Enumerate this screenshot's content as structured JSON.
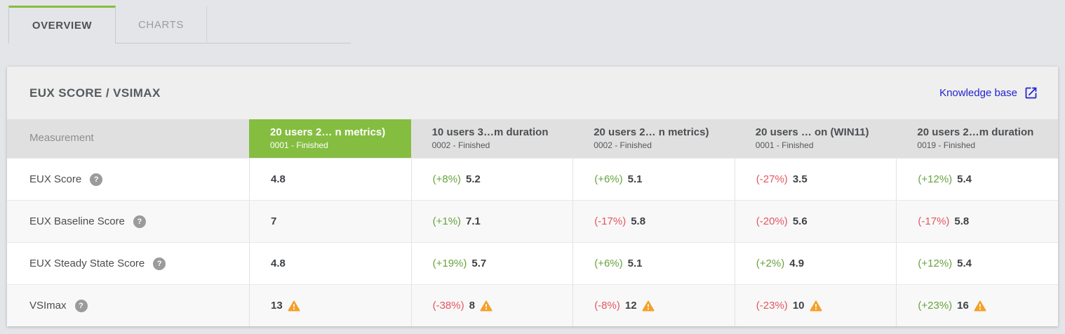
{
  "tabs": [
    {
      "label": "OVERVIEW",
      "active": true
    },
    {
      "label": "CHARTS",
      "active": false
    }
  ],
  "panel": {
    "title": "EUX SCORE / VSIMAX",
    "knowledge_base_label": "Knowledge base"
  },
  "icons": {
    "external_link": "open-in-new",
    "help_glyph": "?",
    "warning": "triangle-exclamation"
  },
  "table": {
    "measurement_header": "Measurement",
    "columns": [
      {
        "title": "20 users 2… n metrics)",
        "subtitle": "0001 - Finished",
        "highlight": true
      },
      {
        "title": "10 users 3…m duration",
        "subtitle": "0002 - Finished",
        "highlight": false
      },
      {
        "title": "20 users 2… n metrics)",
        "subtitle": "0002 - Finished",
        "highlight": false
      },
      {
        "title": "20 users … on (WIN11)",
        "subtitle": "0001 - Finished",
        "highlight": false
      },
      {
        "title": "20 users 2…m duration",
        "subtitle": "0019 - Finished",
        "highlight": false
      }
    ],
    "rows": [
      {
        "label": "EUX Score",
        "cells": [
          {
            "value": "4.8"
          },
          {
            "pct": "(+8%)",
            "value": "5.2"
          },
          {
            "pct": "(+6%)",
            "value": "5.1"
          },
          {
            "pct": "(-27%)",
            "value": "3.5"
          },
          {
            "pct": "(+12%)",
            "value": "5.4"
          }
        ]
      },
      {
        "label": "EUX Baseline Score",
        "cells": [
          {
            "value": "7"
          },
          {
            "pct": "(+1%)",
            "value": "7.1"
          },
          {
            "pct": "(-17%)",
            "value": "5.8"
          },
          {
            "pct": "(-20%)",
            "value": "5.6"
          },
          {
            "pct": "(-17%)",
            "value": "5.8"
          }
        ]
      },
      {
        "label": "EUX Steady State Score",
        "cells": [
          {
            "value": "4.8"
          },
          {
            "pct": "(+19%)",
            "value": "5.7"
          },
          {
            "pct": "(+6%)",
            "value": "5.1"
          },
          {
            "pct": "(+2%)",
            "value": "4.9"
          },
          {
            "pct": "(+12%)",
            "value": "5.4"
          }
        ]
      },
      {
        "label": "VSImax",
        "cells": [
          {
            "value": "13",
            "warning": true
          },
          {
            "pct": "(-38%)",
            "value": "8",
            "warning": true
          },
          {
            "pct": "(-8%)",
            "value": "12",
            "warning": true
          },
          {
            "pct": "(-23%)",
            "value": "10",
            "warning": true
          },
          {
            "pct": "(+23%)",
            "value": "16",
            "warning": true
          }
        ]
      }
    ]
  },
  "colors": {
    "page_bg": "#e4e5e8",
    "card_header_bg": "#efefef",
    "table_head_bg": "#e0e0e0",
    "row_alt_bg": "#f8f8f8",
    "cell_border": "#e2e2e2",
    "accent_green": "#85bd41",
    "positive_green": "#67a33e",
    "negative_red": "#e45660",
    "warning_orange": "#f5a026",
    "link_blue": "#2323cf"
  }
}
